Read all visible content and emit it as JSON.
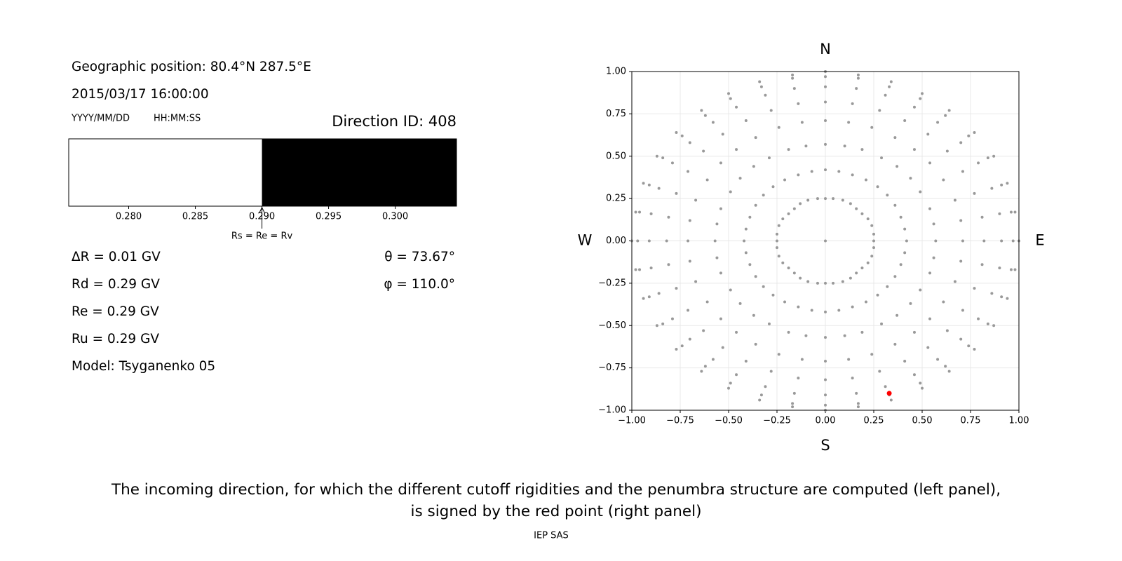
{
  "info": {
    "position": "Geographic position: 80.4°N 287.5°E",
    "datetime": "2015/03/17 16:00:00",
    "date_format": "YYYY/MM/DD",
    "time_format": "HH:MM:SS",
    "direction": "Direction ID: 408",
    "stats": [
      "ΔR = 0.01 GV",
      "Rd = 0.29 GV",
      "Re = 0.29 GV",
      "Ru = 0.29 GV",
      "Model: Tsyganenko 05"
    ],
    "angles": [
      "θ = 73.67°",
      "φ = 110.0°"
    ]
  },
  "chart_data": [
    {
      "type": "bar",
      "xlim": [
        0.2755,
        0.3046
      ],
      "boundary": 0.29,
      "colors": [
        "#ffffff",
        "#000000"
      ],
      "annotation": "Rs = Re = Rv",
      "xticks": [
        {
          "value": 0.28,
          "label": "0.280"
        },
        {
          "value": 0.285,
          "label": "0.285"
        },
        {
          "value": 0.29,
          "label": "0.290"
        },
        {
          "value": 0.295,
          "label": "0.295"
        },
        {
          "value": 0.3,
          "label": "0.300"
        }
      ]
    },
    {
      "type": "scatter",
      "xlim": [
        -1,
        1
      ],
      "ylim": [
        -1,
        1
      ],
      "grid": true,
      "color": "#999999",
      "labels": {
        "north": "N",
        "south": "S",
        "west": "W",
        "east": "E"
      },
      "xticks": [
        {
          "value": -1,
          "label": "−1.00"
        },
        {
          "value": -0.75,
          "label": "−0.75"
        },
        {
          "value": -0.5,
          "label": "−0.50"
        },
        {
          "value": -0.25,
          "label": "−0.25"
        },
        {
          "value": 0,
          "label": "0.00"
        },
        {
          "value": 0.25,
          "label": "0.25"
        },
        {
          "value": 0.5,
          "label": "0.50"
        },
        {
          "value": 0.75,
          "label": "0.75"
        },
        {
          "value": 1,
          "label": "1.00"
        }
      ],
      "yticks": [
        {
          "value": -1,
          "label": "−1.00"
        },
        {
          "value": -0.75,
          "label": "−0.75"
        },
        {
          "value": -0.5,
          "label": "−0.50"
        },
        {
          "value": -0.25,
          "label": "−0.25"
        },
        {
          "value": 0,
          "label": "0.00"
        },
        {
          "value": 0.25,
          "label": "0.25"
        },
        {
          "value": 0.5,
          "label": "0.50"
        },
        {
          "value": 0.75,
          "label": "0.75"
        },
        {
          "value": 1,
          "label": "1.00"
        }
      ],
      "points": {
        "x": [
          0,
          0,
          0.04,
          0.09,
          0.13,
          0.16,
          0.19,
          0.22,
          0.24,
          0.25,
          0.25,
          0.25,
          0.24,
          0.22,
          0.19,
          0.16,
          0.13,
          0.09,
          0.04,
          0,
          -0.04,
          -0.09,
          -0.13,
          -0.16,
          -0.19,
          -0.22,
          -0.24,
          -0.25,
          -0.25,
          -0.25,
          -0.24,
          -0.22,
          -0.19,
          -0.16,
          -0.13,
          -0.09,
          -0.04,
          0,
          0.07,
          0.14,
          0.21,
          0.27,
          0.32,
          0.36,
          0.39,
          0.41,
          0.42,
          0.41,
          0.39,
          0.36,
          0.32,
          0.27,
          0.21,
          0.14,
          0.07,
          0,
          -0.07,
          -0.14,
          -0.21,
          -0.27,
          -0.32,
          -0.36,
          -0.39,
          -0.41,
          -0.42,
          -0.41,
          -0.39,
          -0.36,
          -0.32,
          -0.27,
          -0.21,
          -0.14,
          -0.07,
          0,
          0.1,
          0.19,
          0.29,
          0.37,
          0.44,
          0.49,
          0.54,
          0.56,
          0.57,
          0.56,
          0.54,
          0.49,
          0.44,
          0.37,
          0.29,
          0.19,
          0.1,
          0,
          -0.1,
          -0.19,
          -0.29,
          -0.37,
          -0.44,
          -0.49,
          -0.54,
          -0.56,
          -0.57,
          -0.56,
          -0.54,
          -0.49,
          -0.44,
          -0.37,
          -0.29,
          -0.19,
          -0.1,
          0,
          0.12,
          0.24,
          0.36,
          0.46,
          0.54,
          0.61,
          0.67,
          0.7,
          0.71,
          0.7,
          0.67,
          0.61,
          0.54,
          0.46,
          0.36,
          0.24,
          0.12,
          0,
          -0.12,
          -0.24,
          -0.36,
          -0.46,
          -0.54,
          -0.61,
          -0.67,
          -0.7,
          -0.71,
          -0.7,
          -0.67,
          -0.61,
          -0.54,
          -0.46,
          -0.36,
          -0.24,
          -0.12,
          0,
          0.14,
          0.28,
          0.41,
          0.53,
          0.63,
          0.71,
          0.77,
          0.81,
          0.82,
          0.81,
          0.77,
          0.71,
          0.63,
          0.53,
          0.41,
          0.28,
          0.14,
          0,
          -0.14,
          -0.28,
          -0.41,
          -0.53,
          -0.63,
          -0.71,
          -0.77,
          -0.81,
          -0.82,
          -0.81,
          -0.77,
          -0.71,
          -0.63,
          -0.53,
          -0.41,
          -0.28,
          -0.14,
          0,
          0.16,
          0.31,
          0.46,
          0.58,
          0.7,
          0.79,
          0.86,
          0.9,
          0.91,
          0.9,
          0.86,
          0.79,
          0.7,
          0.58,
          0.46,
          0.31,
          0.16,
          0,
          -0.16,
          -0.31,
          -0.46,
          -0.58,
          -0.7,
          -0.79,
          -0.86,
          -0.9,
          -0.91,
          -0.9,
          -0.86,
          -0.79,
          -0.7,
          -0.58,
          -0.46,
          -0.31,
          -0.16,
          0,
          0.17,
          0.33,
          0.49,
          0.62,
          0.74,
          0.84,
          0.91,
          0.96,
          0.97,
          0.96,
          0.91,
          0.84,
          0.74,
          0.62,
          0.49,
          0.33,
          0.17,
          0,
          -0.17,
          -0.33,
          -0.49,
          -0.62,
          -0.74,
          -0.84,
          -0.91,
          -0.96,
          -0.97,
          -0.96,
          -0.91,
          -0.84,
          -0.74,
          -0.62,
          -0.49,
          -0.33,
          -0.17,
          0,
          0.17,
          0.34,
          0.5,
          0.64,
          0.77,
          0.87,
          0.94,
          0.98,
          1,
          0.98,
          0.94,
          0.87,
          0.77,
          0.64,
          0.5,
          0.34,
          0.17,
          0,
          -0.17,
          -0.34,
          -0.5,
          -0.64,
          -0.77,
          -0.87,
          -0.94,
          -0.98,
          -1,
          -0.98,
          -0.94,
          -0.87,
          -0.77,
          -0.64,
          -0.5,
          -0.34,
          -0.17
        ],
        "y": [
          0,
          0.25,
          0.25,
          0.24,
          0.22,
          0.19,
          0.16,
          0.13,
          0.09,
          0.04,
          0,
          -0.04,
          -0.09,
          -0.13,
          -0.16,
          -0.19,
          -0.22,
          -0.24,
          -0.25,
          -0.25,
          -0.25,
          -0.24,
          -0.22,
          -0.19,
          -0.16,
          -0.13,
          -0.09,
          -0.04,
          0,
          0.04,
          0.09,
          0.13,
          0.16,
          0.19,
          0.22,
          0.24,
          0.25,
          0.42,
          0.41,
          0.39,
          0.36,
          0.32,
          0.27,
          0.21,
          0.14,
          0.07,
          0,
          -0.07,
          -0.14,
          -0.21,
          -0.27,
          -0.32,
          -0.36,
          -0.39,
          -0.41,
          -0.42,
          -0.41,
          -0.39,
          -0.36,
          -0.32,
          -0.27,
          -0.21,
          -0.14,
          -0.07,
          0,
          0.07,
          0.14,
          0.21,
          0.27,
          0.32,
          0.36,
          0.39,
          0.41,
          0.57,
          0.56,
          0.54,
          0.49,
          0.44,
          0.37,
          0.29,
          0.19,
          0.1,
          0,
          -0.1,
          -0.19,
          -0.29,
          -0.37,
          -0.44,
          -0.49,
          -0.54,
          -0.56,
          -0.57,
          -0.56,
          -0.54,
          -0.49,
          -0.44,
          -0.37,
          -0.29,
          -0.19,
          -0.1,
          0,
          0.1,
          0.19,
          0.29,
          0.37,
          0.44,
          0.49,
          0.54,
          0.56,
          0.71,
          0.7,
          0.67,
          0.61,
          0.54,
          0.46,
          0.36,
          0.24,
          0.12,
          0,
          -0.12,
          -0.24,
          -0.36,
          -0.46,
          -0.54,
          -0.61,
          -0.67,
          -0.7,
          -0.71,
          -0.7,
          -0.67,
          -0.61,
          -0.54,
          -0.46,
          -0.36,
          -0.24,
          -0.12,
          0,
          0.12,
          0.24,
          0.36,
          0.46,
          0.54,
          0.61,
          0.67,
          0.7,
          0.82,
          0.81,
          0.77,
          0.71,
          0.63,
          0.53,
          0.41,
          0.28,
          0.14,
          0,
          -0.14,
          -0.28,
          -0.41,
          -0.53,
          -0.63,
          -0.71,
          -0.77,
          -0.81,
          -0.82,
          -0.81,
          -0.77,
          -0.71,
          -0.63,
          -0.53,
          -0.41,
          -0.28,
          -0.14,
          0,
          0.14,
          0.28,
          0.41,
          0.53,
          0.63,
          0.71,
          0.77,
          0.81,
          0.91,
          0.9,
          0.86,
          0.79,
          0.7,
          0.58,
          0.46,
          0.31,
          0.16,
          0,
          -0.16,
          -0.31,
          -0.46,
          -0.58,
          -0.7,
          -0.79,
          -0.86,
          -0.9,
          -0.91,
          -0.9,
          -0.86,
          -0.79,
          -0.7,
          -0.58,
          -0.46,
          -0.31,
          -0.16,
          0,
          0.16,
          0.31,
          0.46,
          0.58,
          0.7,
          0.79,
          0.86,
          0.9,
          0.97,
          0.96,
          0.91,
          0.84,
          0.74,
          0.62,
          0.49,
          0.33,
          0.17,
          0,
          -0.17,
          -0.33,
          -0.49,
          -0.62,
          -0.74,
          -0.84,
          -0.91,
          -0.96,
          -0.97,
          -0.96,
          -0.91,
          -0.84,
          -0.74,
          -0.62,
          -0.49,
          -0.33,
          -0.17,
          0,
          0.17,
          0.33,
          0.49,
          0.62,
          0.74,
          0.84,
          0.91,
          0.96,
          1,
          0.98,
          0.94,
          0.87,
          0.77,
          0.64,
          0.5,
          0.34,
          0.17,
          0,
          -0.17,
          -0.34,
          -0.5,
          -0.64,
          -0.77,
          -0.87,
          -0.94,
          -0.98,
          -1,
          -0.98,
          -0.94,
          -0.87,
          -0.77,
          -0.64,
          -0.5,
          -0.34,
          -0.17,
          0,
          0.17,
          0.34,
          0.5,
          0.64,
          0.77,
          0.87,
          0.94,
          0.98
        ]
      },
      "highlight": {
        "x": 0.33,
        "y": -0.9,
        "color": "#ff0000"
      }
    }
  ],
  "caption": [
    "The incoming direction, for which the different cutoff rigidities and the penumbra structure are computed (left panel),",
    "is signed by the red point (right panel)"
  ],
  "footer": "IEP SAS"
}
